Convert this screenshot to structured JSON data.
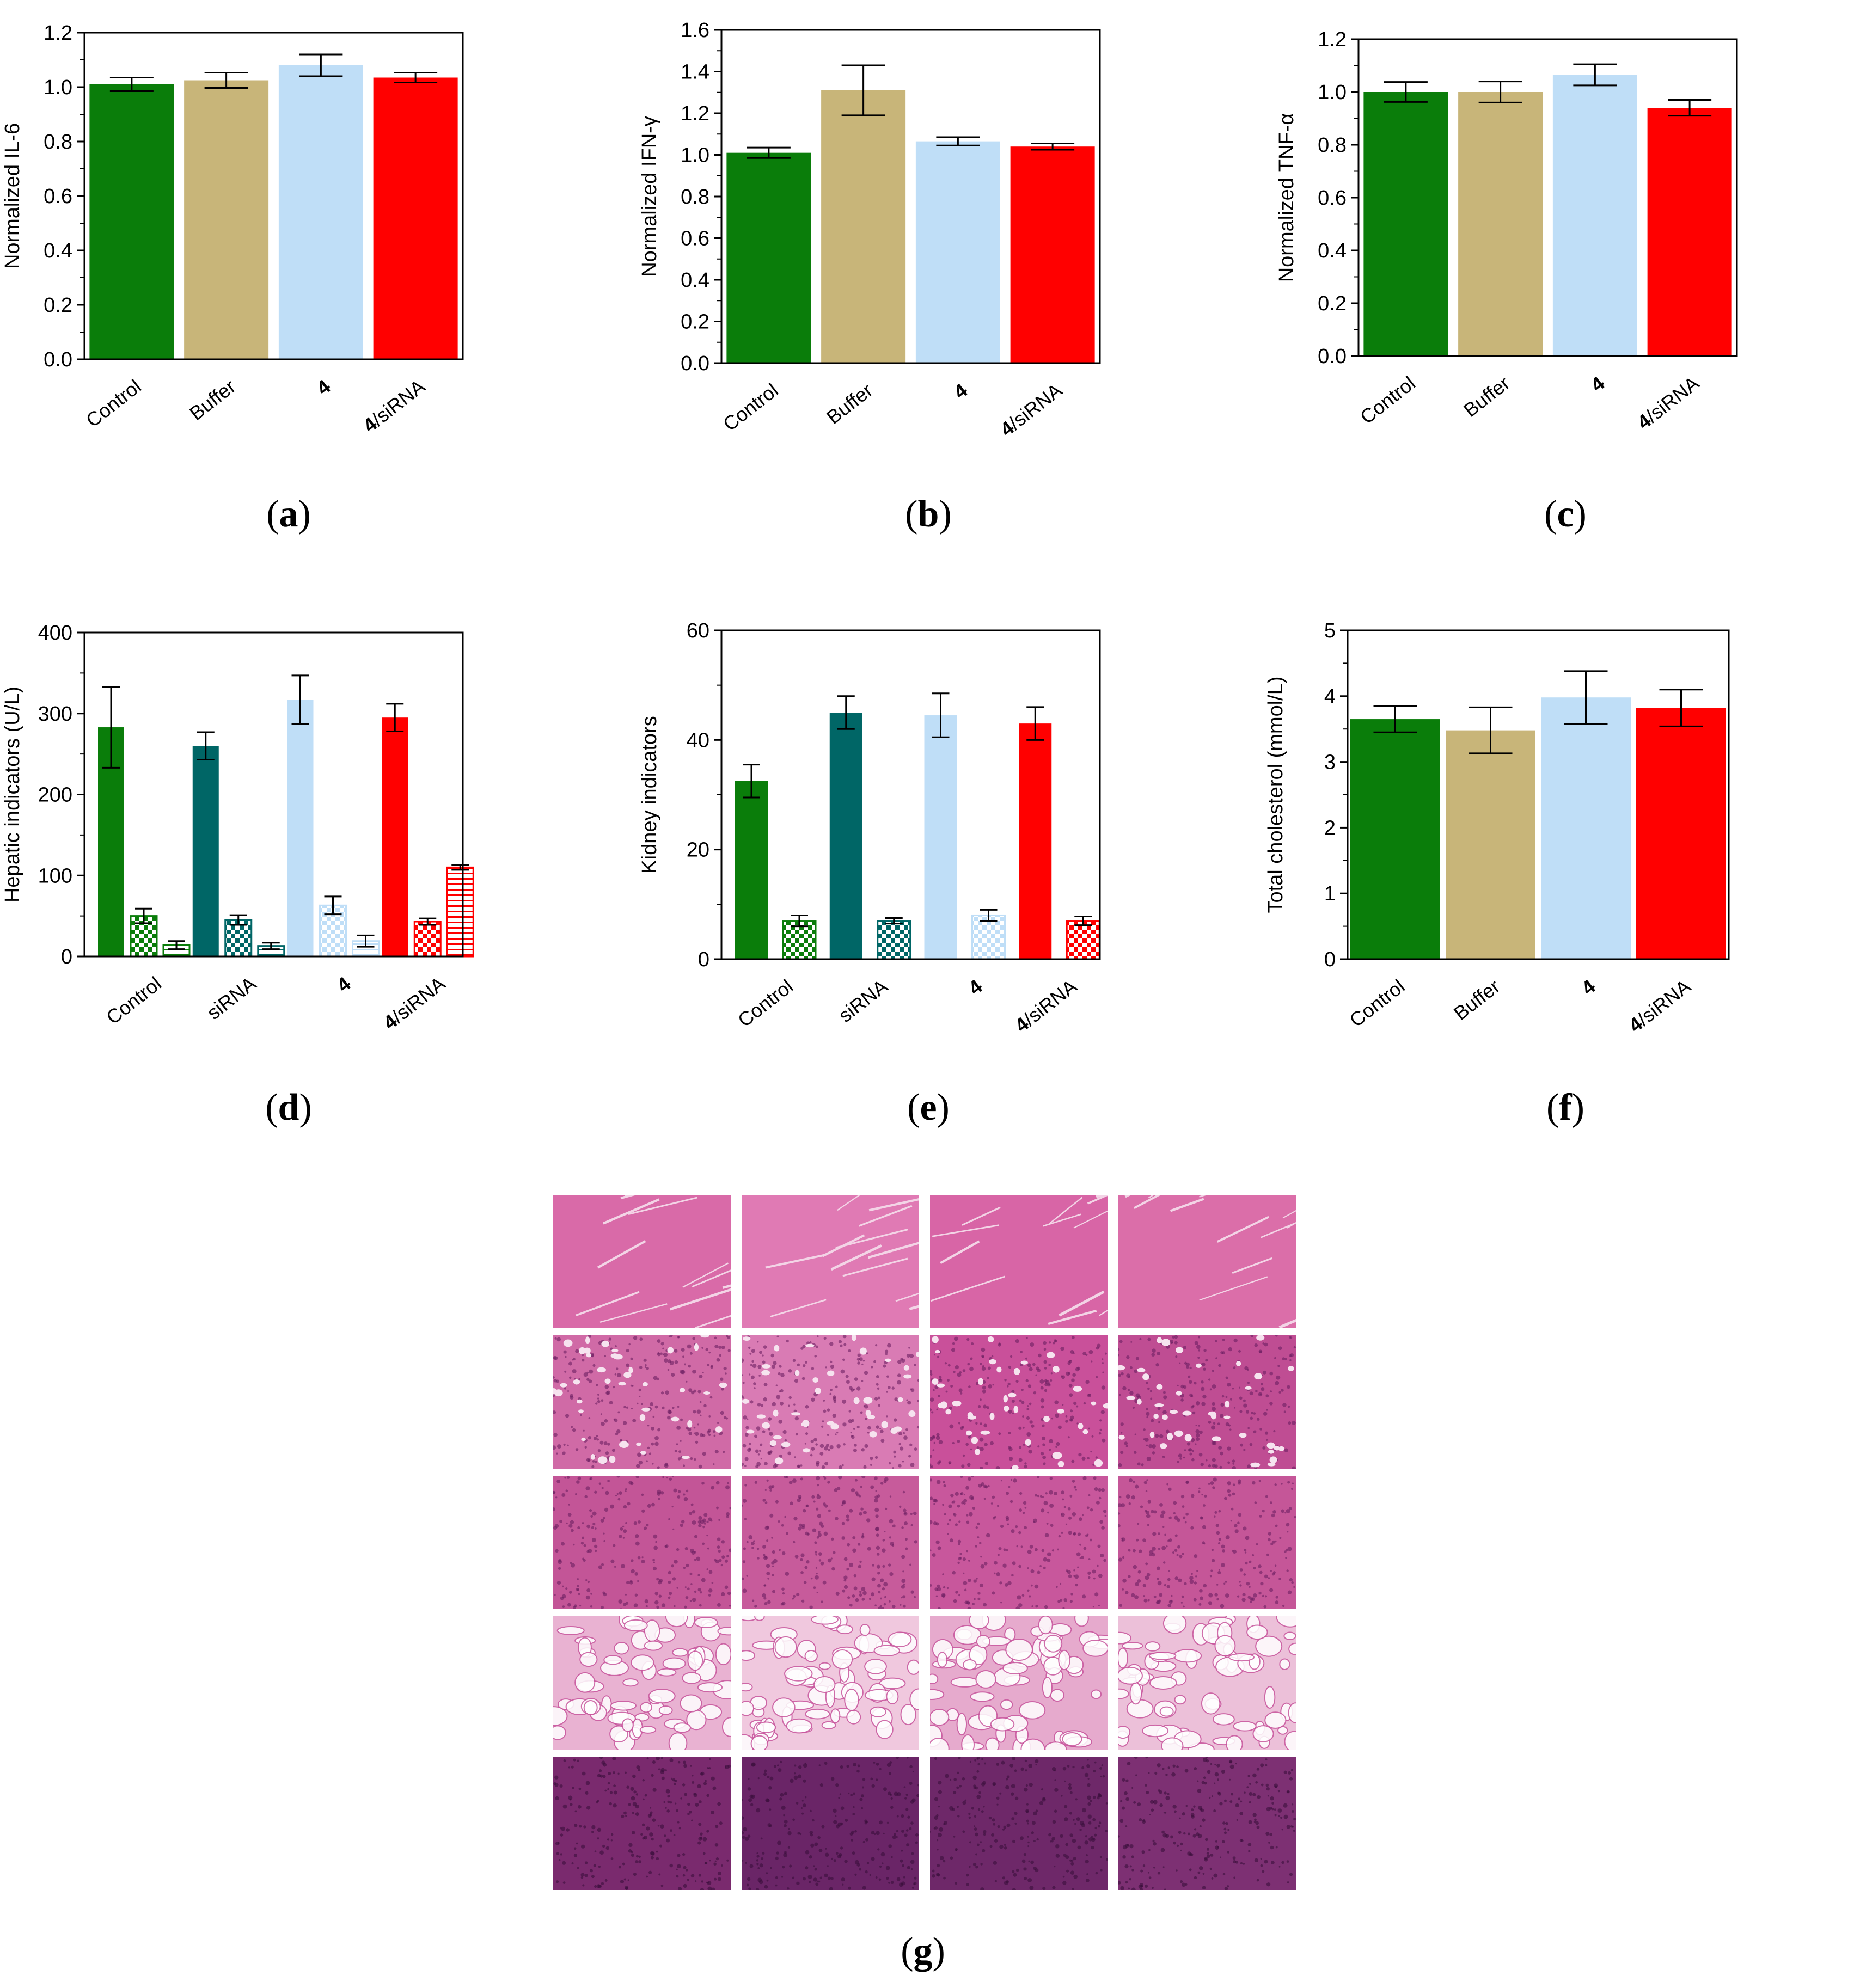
{
  "colors": {
    "green": "#0a7d0a",
    "teal": "#006666",
    "tan": "#c8b579",
    "lightblue": "#bfdef7",
    "red": "#ff0000"
  },
  "chart_data": [
    {
      "id": "a",
      "type": "bar",
      "panel_label": "a",
      "categories": [
        "Control",
        "Buffer",
        "4",
        "4/siRNA"
      ],
      "values": [
        1.01,
        1.025,
        1.08,
        1.035
      ],
      "errors": [
        0.025,
        0.028,
        0.04,
        0.018
      ],
      "colors": [
        "green",
        "tan",
        "lightblue",
        "red"
      ],
      "ylabel": "Normalized IL-6",
      "ylim": [
        0,
        1.2
      ],
      "yticks": [
        0.0,
        0.2,
        0.4,
        0.6,
        0.8,
        1.0,
        1.2
      ],
      "ytick_labels": [
        "0.0",
        "0.2",
        "0.4",
        "0.6",
        "0.8",
        "1.0",
        "1.2"
      ]
    },
    {
      "id": "b",
      "type": "bar",
      "panel_label": "b",
      "categories": [
        "Control",
        "Buffer",
        "4",
        "4/siRNA"
      ],
      "values": [
        1.01,
        1.31,
        1.065,
        1.04
      ],
      "errors": [
        0.025,
        0.12,
        0.02,
        0.015
      ],
      "colors": [
        "green",
        "tan",
        "lightblue",
        "red"
      ],
      "ylabel": "Normalized IFN-γ",
      "ylim": [
        0,
        1.6
      ],
      "yticks": [
        0.0,
        0.2,
        0.4,
        0.6,
        0.8,
        1.0,
        1.2,
        1.4,
        1.6
      ],
      "ytick_labels": [
        "0.0",
        "0.2",
        "0.4",
        "0.6",
        "0.8",
        "1.0",
        "1.2",
        "1.4",
        "1.6"
      ]
    },
    {
      "id": "c",
      "type": "bar",
      "panel_label": "c",
      "categories": [
        "Control",
        "Buffer",
        "4",
        "4/siRNA"
      ],
      "values": [
        1.0,
        1.0,
        1.065,
        0.94
      ],
      "errors": [
        0.038,
        0.04,
        0.04,
        0.03
      ],
      "colors": [
        "green",
        "tan",
        "lightblue",
        "red"
      ],
      "ylabel": "Normalized TNF-α",
      "ylim": [
        0,
        1.2
      ],
      "yticks": [
        0.0,
        0.2,
        0.4,
        0.6,
        0.8,
        1.0,
        1.2
      ],
      "ytick_labels": [
        "0.0",
        "0.2",
        "0.4",
        "0.6",
        "0.8",
        "1.0",
        "1.2"
      ]
    },
    {
      "id": "d",
      "type": "bar",
      "panel_label": "d",
      "categories": [
        "Control",
        "siRNA",
        "4",
        "4/siRNA"
      ],
      "colors": [
        "green",
        "teal",
        "lightblue",
        "red"
      ],
      "series": [
        {
          "pattern": "solid",
          "values": [
            283,
            260,
            317,
            295
          ],
          "errors": [
            50,
            17,
            30,
            17
          ]
        },
        {
          "pattern": "checker",
          "values": [
            50,
            45,
            63,
            43
          ],
          "errors": [
            9,
            6,
            11,
            4
          ]
        },
        {
          "pattern": "hatch-h",
          "values": [
            14,
            13,
            19,
            110
          ],
          "errors": [
            5,
            4,
            7,
            3
          ]
        }
      ],
      "ylabel": "Hepatic indicators (U/L)",
      "ylim": [
        0,
        400
      ],
      "yticks": [
        0,
        100,
        200,
        300,
        400
      ],
      "ytick_labels": [
        "0",
        "100",
        "200",
        "300",
        "400"
      ]
    },
    {
      "id": "e",
      "type": "bar",
      "panel_label": "e",
      "categories": [
        "Control",
        "siRNA",
        "4",
        "4/siRNA"
      ],
      "colors": [
        "green",
        "teal",
        "lightblue",
        "red"
      ],
      "series": [
        {
          "pattern": "solid",
          "values": [
            32.5,
            45,
            44.5,
            43
          ],
          "errors": [
            3,
            3,
            4,
            3
          ]
        },
        {
          "pattern": "checker",
          "values": [
            7,
            7,
            8,
            7
          ],
          "errors": [
            1,
            0.5,
            1,
            0.8
          ]
        }
      ],
      "ylabel": "Kidney indicators",
      "ylim": [
        0,
        60
      ],
      "yticks": [
        0,
        20,
        40,
        60
      ],
      "ytick_labels": [
        "0",
        "20",
        "40",
        "60"
      ]
    },
    {
      "id": "f",
      "type": "bar",
      "panel_label": "f",
      "categories": [
        "Control",
        "Buffer",
        "4",
        "4/siRNA"
      ],
      "values": [
        3.65,
        3.48,
        3.98,
        3.82
      ],
      "errors": [
        0.2,
        0.35,
        0.4,
        0.28
      ],
      "colors": [
        "green",
        "tan",
        "lightblue",
        "red"
      ],
      "ylabel": "Total cholesterol (mmol/L)",
      "ylim": [
        0,
        5
      ],
      "yticks": [
        0,
        1,
        2,
        3,
        4,
        5
      ],
      "ytick_labels": [
        "0",
        "1",
        "2",
        "3",
        "4",
        "5"
      ]
    }
  ],
  "histology": {
    "panel_label": "g",
    "rows": 5,
    "cols": 4,
    "tile_colors": [
      [
        "#d96aa8",
        "#e07ab4",
        "#d865a6",
        "#db6ea9"
      ],
      [
        "#d06aa6",
        "#d97bb4",
        "#c9509a",
        "#bf4d93"
      ],
      [
        "#c35597",
        "#c75b9b",
        "#c8579c",
        "#c55698"
      ],
      [
        "#e9b2d2",
        "#f0c8de",
        "#e6aacd",
        "#ecc0d9"
      ],
      [
        "#7a2a6e",
        "#6a2567",
        "#6e2869",
        "#7d3073"
      ]
    ]
  }
}
